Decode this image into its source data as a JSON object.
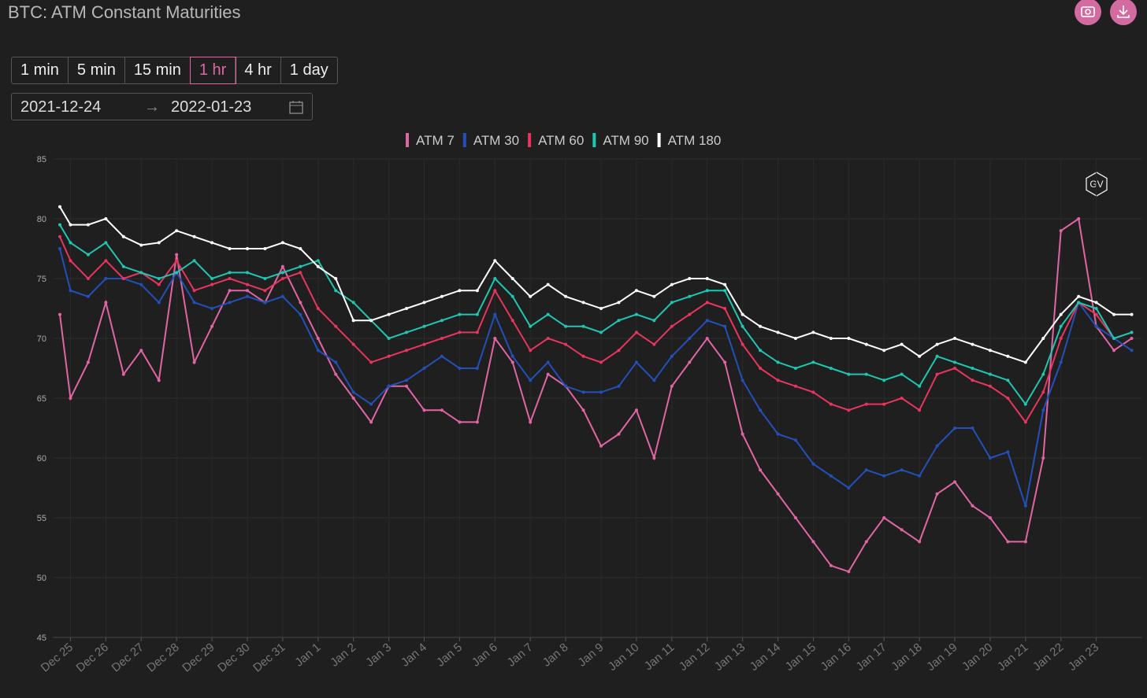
{
  "ui": {
    "title": "BTC: ATM Constant Maturities",
    "intervals": [
      "1 min",
      "5 min",
      "15 min",
      "1 hr",
      "4 hr",
      "1 day"
    ],
    "selected_interval": 3,
    "start_date": "2021-12-24",
    "end_date": "2022-01-23"
  },
  "chart_data": {
    "type": "line",
    "watermark": "GV",
    "x": [
      -0.3,
      0,
      0.5,
      1,
      1.5,
      2,
      2.5,
      3,
      3.5,
      4,
      4.5,
      5,
      5.5,
      6,
      6.5,
      7,
      7.5,
      8,
      8.5,
      9,
      9.5,
      10,
      10.5,
      11,
      11.5,
      12,
      12.5,
      13,
      13.5,
      14,
      14.5,
      15,
      15.5,
      16,
      16.5,
      17,
      17.5,
      18,
      18.5,
      19,
      19.5,
      20,
      20.5,
      21,
      21.5,
      22,
      22.5,
      23,
      23.5,
      24,
      24.5,
      25,
      25.5,
      26,
      26.5,
      27,
      27.5,
      28,
      28.5,
      29,
      29.5,
      30
    ],
    "series": [
      {
        "name": "ATM 7",
        "color": "#e066a3",
        "values": [
          72,
          65,
          68,
          73,
          67,
          69,
          66.5,
          77,
          68,
          71,
          74,
          74,
          73,
          76,
          73,
          70,
          67,
          65,
          63,
          66,
          66,
          64,
          64,
          63,
          63,
          70,
          68,
          63,
          67,
          66,
          64,
          61,
          62,
          64,
          60,
          66,
          68,
          70,
          68,
          62,
          59,
          57,
          55,
          53,
          51,
          50.5,
          53,
          55,
          54,
          53,
          57,
          58,
          56,
          55,
          53,
          53,
          60,
          79,
          80,
          71,
          69,
          70
        ]
      },
      {
        "name": "ATM 30",
        "color": "#2350b8",
        "values": [
          77.5,
          74,
          73.5,
          75,
          75,
          74.5,
          73,
          75.5,
          73,
          72.5,
          73,
          73.5,
          73,
          73.5,
          72,
          69,
          68,
          65.5,
          64.5,
          66,
          66.5,
          67.5,
          68.5,
          67.5,
          67.5,
          72,
          68.5,
          66.5,
          68,
          66,
          65.5,
          65.5,
          66,
          68,
          66.5,
          68.5,
          70,
          71.5,
          71,
          66.5,
          64,
          62,
          61.5,
          59.5,
          58.5,
          57.5,
          59,
          58.5,
          59,
          58.5,
          61,
          62.5,
          62.5,
          60,
          60.5,
          56,
          64,
          68,
          73,
          71,
          70,
          69
        ]
      },
      {
        "name": "ATM 60",
        "color": "#e8355e",
        "values": [
          78.5,
          76.5,
          75,
          76.5,
          75,
          75.5,
          74.5,
          76.5,
          74,
          74.5,
          75,
          74.5,
          74,
          75,
          75.5,
          72.5,
          71,
          69.5,
          68,
          68.5,
          69,
          69.5,
          70,
          70.5,
          70.5,
          74,
          71.5,
          69,
          70,
          69.5,
          68.5,
          68,
          69,
          70.5,
          69.5,
          71,
          72,
          73,
          72.5,
          69.5,
          67.5,
          66.5,
          66,
          65.5,
          64.5,
          64,
          64.5,
          64.5,
          65,
          64,
          67,
          67.5,
          66.5,
          66,
          65,
          63,
          65.5,
          70,
          73,
          72,
          70,
          70.5
        ]
      },
      {
        "name": "ATM 90",
        "color": "#1fc7b0",
        "values": [
          79.5,
          78,
          77,
          78,
          76,
          75.5,
          75,
          75.5,
          76.5,
          75,
          75.5,
          75.5,
          75,
          75.5,
          76,
          76.5,
          74,
          73,
          71.5,
          70,
          70.5,
          71,
          71.5,
          72,
          72,
          75,
          73.5,
          71,
          72,
          71,
          71,
          70.5,
          71.5,
          72,
          71.5,
          73,
          73.5,
          74,
          74,
          71,
          69,
          68,
          67.5,
          68,
          67.5,
          67,
          67,
          66.5,
          67,
          66,
          68.5,
          68,
          67.5,
          67,
          66.5,
          64.5,
          67,
          71,
          73,
          72.5,
          70,
          70.5
        ]
      },
      {
        "name": "ATM 180",
        "color": "#ffffff",
        "values": [
          81,
          79.5,
          79.5,
          80,
          78.5,
          77.8,
          78,
          79,
          78.5,
          78,
          77.5,
          77.5,
          77.5,
          78,
          77.5,
          76,
          75,
          71.5,
          71.5,
          72,
          72.5,
          73,
          73.5,
          74,
          74,
          76.5,
          75,
          73.5,
          74.5,
          73.5,
          73,
          72.5,
          73,
          74,
          73.5,
          74.5,
          75,
          75,
          74.5,
          72,
          71,
          70.5,
          70,
          70.5,
          70,
          70,
          69.5,
          69,
          69.5,
          68.5,
          69.5,
          70,
          69.5,
          69,
          68.5,
          68,
          70,
          72,
          73.5,
          73,
          72,
          72
        ]
      }
    ],
    "xlim": [
      -0.5,
      30.3
    ],
    "xticks": [
      {
        "value": 0,
        "label": "Dec 25"
      },
      {
        "value": 1,
        "label": "Dec 26"
      },
      {
        "value": 2,
        "label": "Dec 27"
      },
      {
        "value": 3,
        "label": "Dec 28"
      },
      {
        "value": 4,
        "label": "Dec 29"
      },
      {
        "value": 5,
        "label": "Dec 30"
      },
      {
        "value": 6,
        "label": "Dec 31"
      },
      {
        "value": 7,
        "label": "Jan 1"
      },
      {
        "value": 8,
        "label": "Jan 2"
      },
      {
        "value": 9,
        "label": "Jan 3"
      },
      {
        "value": 10,
        "label": "Jan 4"
      },
      {
        "value": 11,
        "label": "Jan 5"
      },
      {
        "value": 12,
        "label": "Jan 6"
      },
      {
        "value": 13,
        "label": "Jan 7"
      },
      {
        "value": 14,
        "label": "Jan 8"
      },
      {
        "value": 15,
        "label": "Jan 9"
      },
      {
        "value": 16,
        "label": "Jan 10"
      },
      {
        "value": 17,
        "label": "Jan 11"
      },
      {
        "value": 18,
        "label": "Jan 12"
      },
      {
        "value": 19,
        "label": "Jan 13"
      },
      {
        "value": 20,
        "label": "Jan 14"
      },
      {
        "value": 21,
        "label": "Jan 15"
      },
      {
        "value": 22,
        "label": "Jan 16"
      },
      {
        "value": 23,
        "label": "Jan 17"
      },
      {
        "value": 24,
        "label": "Jan 18"
      },
      {
        "value": 25,
        "label": "Jan 19"
      },
      {
        "value": 26,
        "label": "Jan 20"
      },
      {
        "value": 27,
        "label": "Jan 21"
      },
      {
        "value": 28,
        "label": "Jan 22"
      },
      {
        "value": 29,
        "label": "Jan 23"
      }
    ],
    "ylim": [
      45,
      85
    ],
    "yticks": [
      45,
      50,
      55,
      60,
      65,
      70,
      75,
      80,
      85
    ],
    "grid": true
  }
}
